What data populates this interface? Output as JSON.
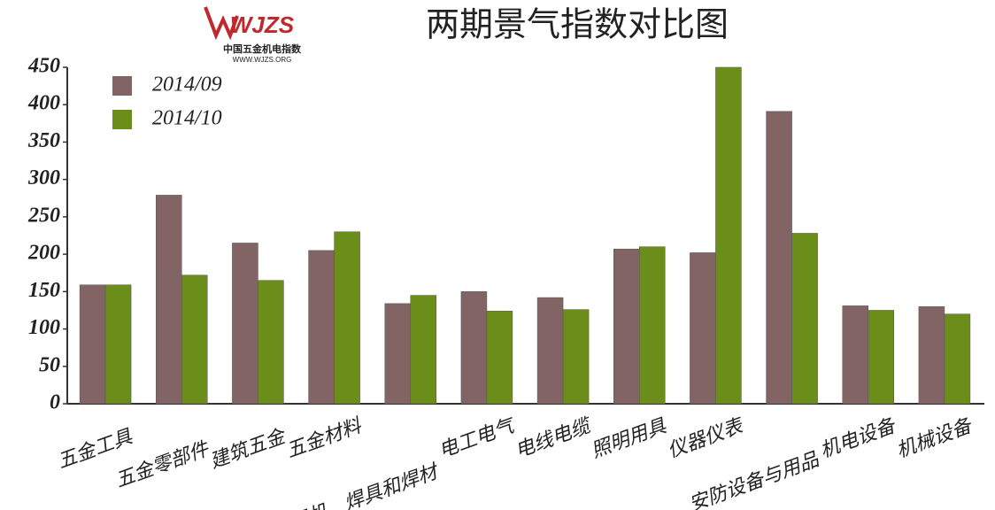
{
  "logo": {
    "brand": "WJZS",
    "name": "中国五金机电指数",
    "url": "WWW.WJZS.ORG"
  },
  "chart_data": {
    "type": "bar",
    "title": "两期景气指数对比图",
    "categories": [
      "五金工具",
      "五金零部件",
      "建筑五金",
      "五金材料",
      "焊机、焊具和焊材",
      "电工电气",
      "电线电缆",
      "照明用具",
      "仪器仪表",
      "安防设备与用品",
      "机电设备",
      "机械设备"
    ],
    "series": [
      {
        "name": "2014/09",
        "color": "#826464",
        "values": [
          159,
          279,
          215,
          205,
          134,
          150,
          142,
          207,
          202,
          391,
          131,
          130
        ]
      },
      {
        "name": "2014/10",
        "color": "#6b8e1a",
        "values": [
          159,
          172,
          165,
          230,
          145,
          124,
          126,
          210,
          450,
          228,
          125,
          120
        ]
      }
    ],
    "ylim": [
      0,
      450
    ],
    "yticks": [
      0,
      50,
      100,
      150,
      200,
      250,
      300,
      350,
      400,
      450
    ],
    "grid": false,
    "legend": "top-left"
  }
}
